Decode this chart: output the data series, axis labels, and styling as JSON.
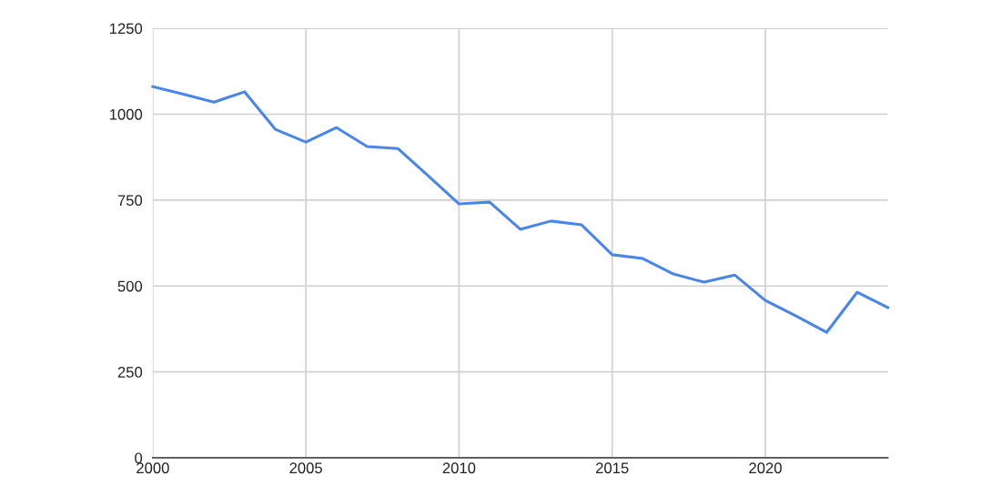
{
  "chart_data": {
    "type": "line",
    "x": [
      2000,
      2001,
      2002,
      2003,
      2004,
      2005,
      2006,
      2007,
      2008,
      2009,
      2010,
      2011,
      2012,
      2013,
      2014,
      2015,
      2016,
      2017,
      2018,
      2019,
      2020,
      2021,
      2022,
      2023,
      2024
    ],
    "series": [
      {
        "color": "#4a86e8",
        "values": [
          1080,
          1058,
          1035,
          1065,
          956,
          919,
          961,
          906,
          900,
          820,
          739,
          744,
          665,
          689,
          678,
          591,
          580,
          535,
          511,
          532,
          458,
          413,
          365,
          482,
          437
        ]
      }
    ],
    "xlim": [
      2000,
      2024
    ],
    "xticks": [
      2000,
      2005,
      2010,
      2015,
      2020
    ],
    "ylim": [
      0,
      1250
    ],
    "yticks": [
      0,
      250,
      500,
      750,
      1000,
      1250
    ],
    "grid": true,
    "marker": "none",
    "line_style": "solid"
  }
}
